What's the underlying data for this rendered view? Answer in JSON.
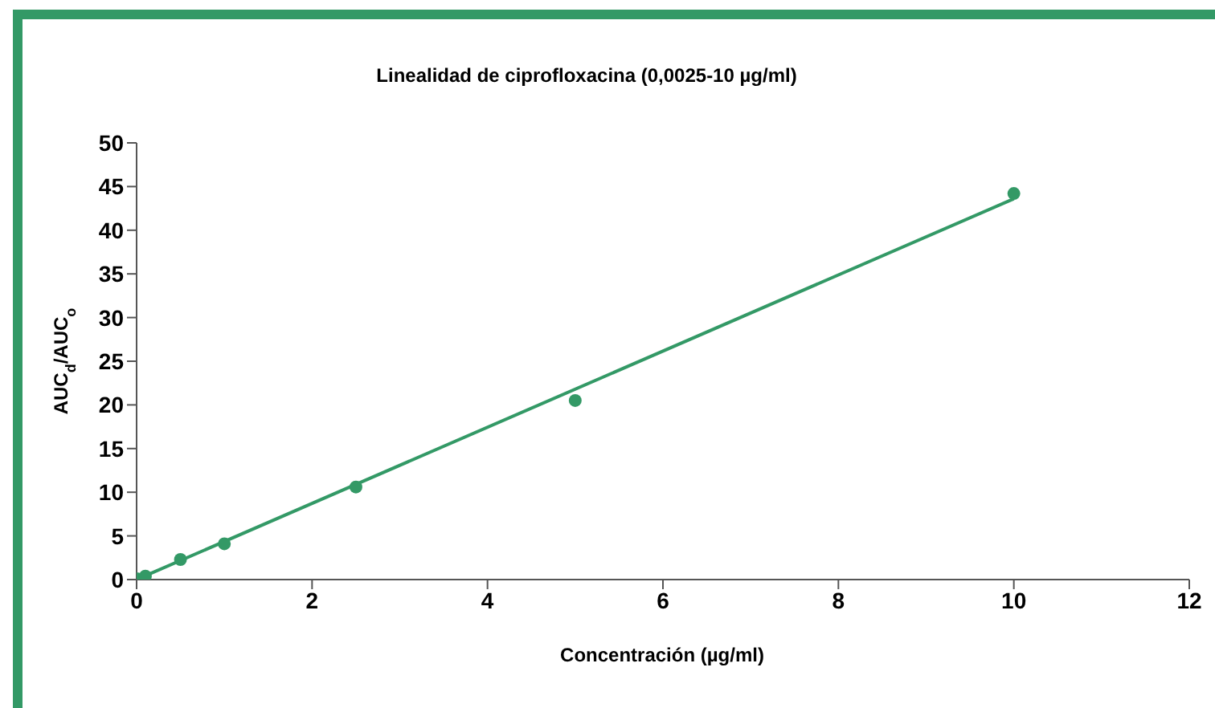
{
  "chart_data": {
    "type": "scatter",
    "title": "Linealidad de ciprofloxacina (0,0025-10 µg/ml)",
    "xlabel": "Concentración (µg/ml)",
    "ylabel": "AUC$_{d}$/AUC$_{o}$",
    "x": [
      0.0025,
      0.1,
      0.5,
      1,
      2.5,
      5,
      10
    ],
    "series": [
      {
        "type": "line",
        "color": "#339966",
        "x": [
          0,
          10
        ],
        "values": [
          0,
          43.6
        ],
        "marker": "none"
      },
      {
        "color": "#339966",
        "values": [
          0.1,
          0.4,
          2.3,
          4.1,
          10.6,
          20.5,
          44.2
        ],
        "marker": "circle"
      }
    ],
    "xlim": [
      0,
      12
    ],
    "xticks": [
      0,
      2,
      4,
      6,
      8,
      10,
      12
    ],
    "ylim": [
      0,
      50
    ],
    "yticks": [
      0,
      5,
      10,
      15,
      20,
      25,
      30,
      35,
      40,
      45,
      50
    ]
  }
}
